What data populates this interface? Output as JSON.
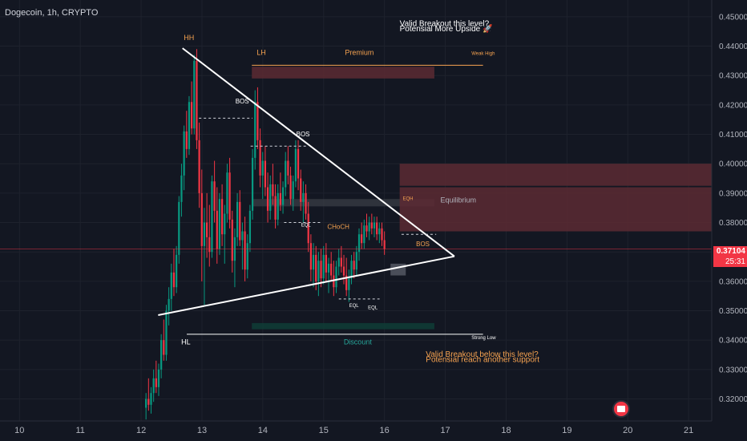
{
  "header": {
    "symbol": "Dogecoin, 1h, CRYPTO"
  },
  "price_badge": {
    "price": "0.37104",
    "timer": "25:31"
  },
  "colors": {
    "background": "#131722",
    "grid": "#1e222d",
    "axis_text": "#b2b5be",
    "candle_up": "#089981",
    "candle_down": "#f23645",
    "trendline": "#ffffff",
    "premium_zone": "#5c2a33",
    "discount_zone": "#0f3d36",
    "equilibrium_zone": "#3a3d46",
    "label_orange": "#f7a350",
    "label_white": "#ffffff",
    "label_teal": "#26a69a",
    "current_price_line": "#f23645"
  },
  "chart_data": {
    "type": "candlestick",
    "x_ticks": [
      "10",
      "11",
      "12",
      "13",
      "14",
      "15",
      "16",
      "17",
      "18",
      "19",
      "20",
      "21"
    ],
    "y_ticks": [
      "0.45000",
      "0.44000",
      "0.43000",
      "0.42000",
      "0.41000",
      "0.40000",
      "0.39000",
      "0.38000",
      "0.37000",
      "0.36000",
      "0.35000",
      "0.34000",
      "0.33000",
      "0.32000"
    ],
    "x_range": [
      9.68,
      21.38
    ],
    "y_range": [
      0.3125,
      0.4557
    ],
    "current_price": 0.37104,
    "candles_start_day": 12.08,
    "candle_step_day": 0.0417,
    "candles": [
      [
        0.317,
        0.322,
        0.313,
        0.32
      ],
      [
        0.32,
        0.327,
        0.316,
        0.318
      ],
      [
        0.318,
        0.324,
        0.315,
        0.322
      ],
      [
        0.322,
        0.33,
        0.319,
        0.327
      ],
      [
        0.327,
        0.333,
        0.322,
        0.324
      ],
      [
        0.324,
        0.332,
        0.321,
        0.33
      ],
      [
        0.33,
        0.342,
        0.327,
        0.34
      ],
      [
        0.34,
        0.347,
        0.333,
        0.335
      ],
      [
        0.335,
        0.352,
        0.333,
        0.35
      ],
      [
        0.35,
        0.358,
        0.345,
        0.354
      ],
      [
        0.354,
        0.366,
        0.35,
        0.363
      ],
      [
        0.363,
        0.371,
        0.355,
        0.358
      ],
      [
        0.358,
        0.372,
        0.356,
        0.369
      ],
      [
        0.369,
        0.389,
        0.366,
        0.387
      ],
      [
        0.387,
        0.4,
        0.382,
        0.396
      ],
      [
        0.396,
        0.413,
        0.391,
        0.411
      ],
      [
        0.411,
        0.418,
        0.402,
        0.405
      ],
      [
        0.405,
        0.423,
        0.403,
        0.421
      ],
      [
        0.421,
        0.428,
        0.41,
        0.412
      ],
      [
        0.412,
        0.437,
        0.41,
        0.435
      ],
      [
        0.435,
        0.439,
        0.405,
        0.408
      ],
      [
        0.408,
        0.414,
        0.385,
        0.39
      ],
      [
        0.39,
        0.398,
        0.36,
        0.372
      ],
      [
        0.372,
        0.385,
        0.352,
        0.38
      ],
      [
        0.38,
        0.39,
        0.368,
        0.375
      ],
      [
        0.375,
        0.386,
        0.365,
        0.37
      ],
      [
        0.37,
        0.396,
        0.368,
        0.394
      ],
      [
        0.394,
        0.401,
        0.38,
        0.384
      ],
      [
        0.384,
        0.392,
        0.366,
        0.371
      ],
      [
        0.371,
        0.39,
        0.369,
        0.388
      ],
      [
        0.388,
        0.393,
        0.372,
        0.376
      ],
      [
        0.376,
        0.386,
        0.366,
        0.383
      ],
      [
        0.383,
        0.4,
        0.38,
        0.397
      ],
      [
        0.397,
        0.402,
        0.378,
        0.381
      ],
      [
        0.381,
        0.384,
        0.363,
        0.367
      ],
      [
        0.367,
        0.378,
        0.358,
        0.375
      ],
      [
        0.375,
        0.39,
        0.372,
        0.387
      ],
      [
        0.387,
        0.391,
        0.372,
        0.374
      ],
      [
        0.374,
        0.38,
        0.364,
        0.377
      ],
      [
        0.377,
        0.382,
        0.36,
        0.364
      ],
      [
        0.364,
        0.376,
        0.361,
        0.373
      ],
      [
        0.373,
        0.386,
        0.37,
        0.384
      ],
      [
        0.384,
        0.405,
        0.381,
        0.402
      ],
      [
        0.402,
        0.425,
        0.398,
        0.421
      ],
      [
        0.421,
        0.426,
        0.405,
        0.408
      ],
      [
        0.408,
        0.412,
        0.392,
        0.396
      ],
      [
        0.396,
        0.404,
        0.388,
        0.401
      ],
      [
        0.401,
        0.406,
        0.389,
        0.392
      ],
      [
        0.392,
        0.397,
        0.38,
        0.384
      ],
      [
        0.384,
        0.396,
        0.381,
        0.393
      ],
      [
        0.393,
        0.4,
        0.386,
        0.389
      ],
      [
        0.389,
        0.393,
        0.378,
        0.381
      ],
      [
        0.381,
        0.393,
        0.379,
        0.39
      ],
      [
        0.39,
        0.397,
        0.384,
        0.386
      ],
      [
        0.386,
        0.394,
        0.383,
        0.392
      ],
      [
        0.392,
        0.404,
        0.389,
        0.401
      ],
      [
        0.401,
        0.406,
        0.393,
        0.396
      ],
      [
        0.396,
        0.399,
        0.386,
        0.388
      ],
      [
        0.388,
        0.396,
        0.384,
        0.394
      ],
      [
        0.394,
        0.408,
        0.392,
        0.405
      ],
      [
        0.405,
        0.408,
        0.391,
        0.395
      ],
      [
        0.395,
        0.398,
        0.384,
        0.387
      ],
      [
        0.387,
        0.394,
        0.38,
        0.39
      ],
      [
        0.39,
        0.393,
        0.381,
        0.383
      ],
      [
        0.383,
        0.387,
        0.37,
        0.373
      ],
      [
        0.373,
        0.376,
        0.36,
        0.364
      ],
      [
        0.364,
        0.373,
        0.358,
        0.369
      ],
      [
        0.369,
        0.372,
        0.357,
        0.36
      ],
      [
        0.36,
        0.37,
        0.355,
        0.367
      ],
      [
        0.367,
        0.371,
        0.358,
        0.361
      ],
      [
        0.361,
        0.372,
        0.359,
        0.369
      ],
      [
        0.369,
        0.373,
        0.36,
        0.363
      ],
      [
        0.363,
        0.368,
        0.356,
        0.366
      ],
      [
        0.366,
        0.37,
        0.36,
        0.362
      ],
      [
        0.362,
        0.367,
        0.355,
        0.358
      ],
      [
        0.358,
        0.367,
        0.356,
        0.365
      ],
      [
        0.365,
        0.371,
        0.362,
        0.368
      ],
      [
        0.368,
        0.372,
        0.363,
        0.365
      ],
      [
        0.365,
        0.369,
        0.359,
        0.362
      ],
      [
        0.362,
        0.368,
        0.355,
        0.357
      ],
      [
        0.357,
        0.364,
        0.353,
        0.361
      ],
      [
        0.361,
        0.369,
        0.359,
        0.367
      ],
      [
        0.367,
        0.37,
        0.361,
        0.364
      ],
      [
        0.364,
        0.372,
        0.362,
        0.37
      ],
      [
        0.37,
        0.378,
        0.367,
        0.376
      ],
      [
        0.376,
        0.38,
        0.371,
        0.373
      ],
      [
        0.373,
        0.381,
        0.371,
        0.379
      ],
      [
        0.379,
        0.383,
        0.375,
        0.377
      ],
      [
        0.377,
        0.382,
        0.374,
        0.38
      ],
      [
        0.38,
        0.383,
        0.376,
        0.378
      ],
      [
        0.378,
        0.382,
        0.375,
        0.38
      ],
      [
        0.38,
        0.382,
        0.374,
        0.376
      ],
      [
        0.376,
        0.38,
        0.373,
        0.378
      ],
      [
        0.378,
        0.38,
        0.372,
        0.374
      ],
      [
        0.374,
        0.377,
        0.369,
        0.371
      ]
    ],
    "trendlines": [
      {
        "name": "descending",
        "from": [
          12.68,
          0.4393
        ],
        "to": [
          17.15,
          0.3685
        ]
      },
      {
        "name": "ascending",
        "from": [
          12.28,
          0.3485
        ],
        "to": [
          17.15,
          0.3685
        ]
      }
    ],
    "hlines": [
      {
        "name": "weak-high",
        "y": 0.4335,
        "x1": 13.82,
        "x2": 17.62
      },
      {
        "name": "strong-low",
        "y": 0.342,
        "x1": 12.75,
        "x2": 17.62
      }
    ],
    "zones": [
      {
        "name": "premium",
        "x1": 13.82,
        "x2": 16.82,
        "y1": 0.429,
        "y2": 0.433,
        "color": "premium_zone"
      },
      {
        "name": "equilibrium",
        "x1": 13.82,
        "x2": 16.82,
        "y1": 0.3855,
        "y2": 0.388,
        "color": "equilibrium_zone"
      },
      {
        "name": "discount",
        "x1": 13.82,
        "x2": 16.82,
        "y1": 0.3437,
        "y2": 0.3458,
        "color": "discount_zone"
      },
      {
        "name": "upper-supply",
        "x1": 16.25,
        "x2": 21.38,
        "y1": 0.3925,
        "y2": 0.4,
        "color": "premium_zone"
      },
      {
        "name": "lower-supply",
        "x1": 16.25,
        "x2": 21.38,
        "y1": 0.377,
        "y2": 0.392,
        "color": "premium_zone"
      }
    ],
    "dashed_levels": [
      {
        "name": "bos-1",
        "y": 0.4155,
        "x1": 12.95,
        "x2": 13.83
      },
      {
        "name": "bos-2",
        "y": 0.406,
        "x1": 13.8,
        "x2": 14.72
      },
      {
        "name": "eql-top",
        "y": 0.38,
        "x1": 14.35,
        "x2": 14.95
      },
      {
        "name": "eql-bottom",
        "y": 0.354,
        "x1": 15.25,
        "x2": 15.92
      },
      {
        "name": "bos-3",
        "y": 0.376,
        "x1": 16.28,
        "x2": 16.85
      }
    ],
    "annotations": [
      {
        "text": "HH",
        "x": 12.7,
        "y": 0.442,
        "color": "label_orange",
        "size": 9
      },
      {
        "text": "LH",
        "x": 13.9,
        "y": 0.437,
        "color": "label_orange",
        "size": 9
      },
      {
        "text": "Premium",
        "x": 15.35,
        "y": 0.437,
        "color": "label_orange",
        "size": 9
      },
      {
        "text": "Weak High",
        "x": 17.43,
        "y": 0.437,
        "color": "label_orange",
        "size": 6
      },
      {
        "text": "BOS",
        "x": 13.55,
        "y": 0.4205,
        "color": "label_white",
        "size": 8
      },
      {
        "text": "BOS",
        "x": 14.55,
        "y": 0.4093,
        "color": "label_white",
        "size": 8
      },
      {
        "text": "EQL",
        "x": 14.63,
        "y": 0.3787,
        "color": "label_white",
        "size": 6
      },
      {
        "text": "CHoCH",
        "x": 15.06,
        "y": 0.3778,
        "color": "label_orange",
        "size": 8
      },
      {
        "text": "EQH",
        "x": 16.3,
        "y": 0.3877,
        "color": "label_orange",
        "size": 6
      },
      {
        "text": "Equilibrium",
        "x": 16.92,
        "y": 0.3868,
        "color": "axis_text",
        "size": 9
      },
      {
        "text": "BOS",
        "x": 16.52,
        "y": 0.372,
        "color": "label_orange",
        "size": 8
      },
      {
        "text": "EQL",
        "x": 15.42,
        "y": 0.3512,
        "color": "label_white",
        "size": 6
      },
      {
        "text": "EQL",
        "x": 15.73,
        "y": 0.3505,
        "color": "label_white",
        "size": 6
      },
      {
        "text": "HL",
        "x": 12.66,
        "y": 0.3385,
        "color": "label_white",
        "size": 9
      },
      {
        "text": "Discount",
        "x": 15.33,
        "y": 0.3385,
        "color": "label_teal",
        "size": 9
      },
      {
        "text": "Strong Low",
        "x": 17.43,
        "y": 0.3403,
        "color": "label_white",
        "size": 6
      },
      {
        "text": "Valid Breakout this level?",
        "x": 16.25,
        "y": 0.4468,
        "color": "label_white",
        "size": 10
      },
      {
        "text": "Potensial More Upside 🚀",
        "x": 16.25,
        "y": 0.445,
        "color": "label_white",
        "size": 10
      },
      {
        "text": "Valid Breakout below this level?",
        "x": 16.68,
        "y": 0.3343,
        "color": "label_orange",
        "size": 10
      },
      {
        "text": "Potensial reach another support",
        "x": 16.68,
        "y": 0.3325,
        "color": "label_orange",
        "size": 10
      }
    ]
  }
}
